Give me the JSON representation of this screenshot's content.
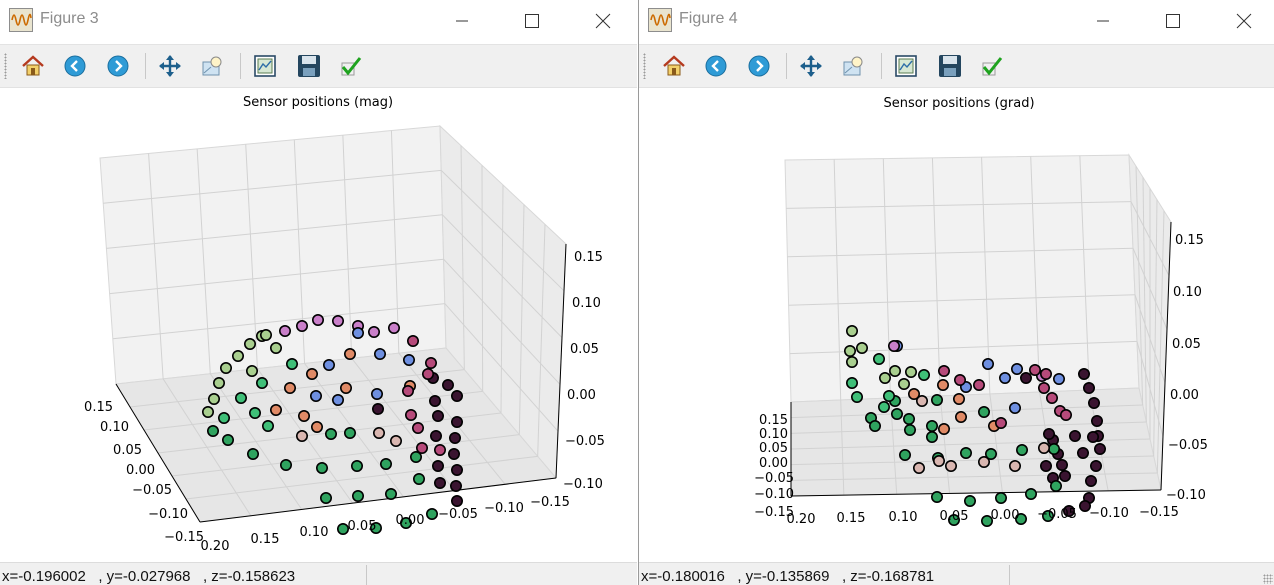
{
  "windows": [
    {
      "title": "Figure 3",
      "plot_title": "Sensor positions (mag)",
      "status": "x=-0.196002   , y=-0.027968   , z=-0.158623"
    },
    {
      "title": "Figure 4",
      "plot_title": "Sensor positions (grad)",
      "status": "x=-0.180016   , y=-0.135869   , z=-0.168781"
    }
  ],
  "toolbar_icons": [
    "home-icon",
    "back-icon",
    "forward-icon",
    "pan-icon",
    "zoom-icon",
    "subplots-icon",
    "save-icon",
    "check-icon"
  ],
  "chart_data": [
    {
      "type": "scatter",
      "title": "Sensor positions (mag)",
      "xlabel": "",
      "ylabel": "",
      "zlabel": "",
      "x_ticks": [
        "0.20",
        "0.15",
        "0.10",
        "0.05",
        "0.00",
        "−0.05",
        "−0.10",
        "−0.15"
      ],
      "y_ticks": [
        "0.15",
        "0.10",
        "0.05",
        "0.00",
        "−0.05",
        "−0.10",
        "−0.15"
      ],
      "z_ticks": [
        "0.15",
        "0.10",
        "0.05",
        "0.00",
        "−0.05",
        "−0.10"
      ],
      "xlim": [
        0.2,
        -0.15
      ],
      "ylim": [
        0.15,
        -0.15
      ],
      "zlim": [
        -0.1,
        0.15
      ],
      "grid": true
    },
    {
      "type": "scatter",
      "title": "Sensor positions (grad)",
      "xlabel": "",
      "ylabel": "",
      "zlabel": "",
      "x_ticks": [
        "0.20",
        "0.15",
        "0.10",
        "0.05",
        "0.00",
        "−0.05",
        "−0.10",
        "−0.15"
      ],
      "y_ticks": [
        "0.15",
        "0.10",
        "0.05",
        "0.00",
        "−0.05",
        "−0.10",
        "−0.15"
      ],
      "z_ticks": [
        "0.15",
        "0.10",
        "0.05",
        "0.00",
        "−0.05",
        "−0.10"
      ],
      "xlim": [
        0.2,
        -0.15
      ],
      "ylim": [
        0.15,
        -0.15
      ],
      "zlim": [
        -0.1,
        0.15
      ],
      "grid": true
    }
  ],
  "colors": {
    "marker_edge": "#000000",
    "gradient": [
      "#2fa35f",
      "#3fbf78",
      "#a9cf8f",
      "#d9b6b0",
      "#e08a66",
      "#c97fc9",
      "#6e8fe0",
      "#b64a7a",
      "#3a1430"
    ]
  }
}
